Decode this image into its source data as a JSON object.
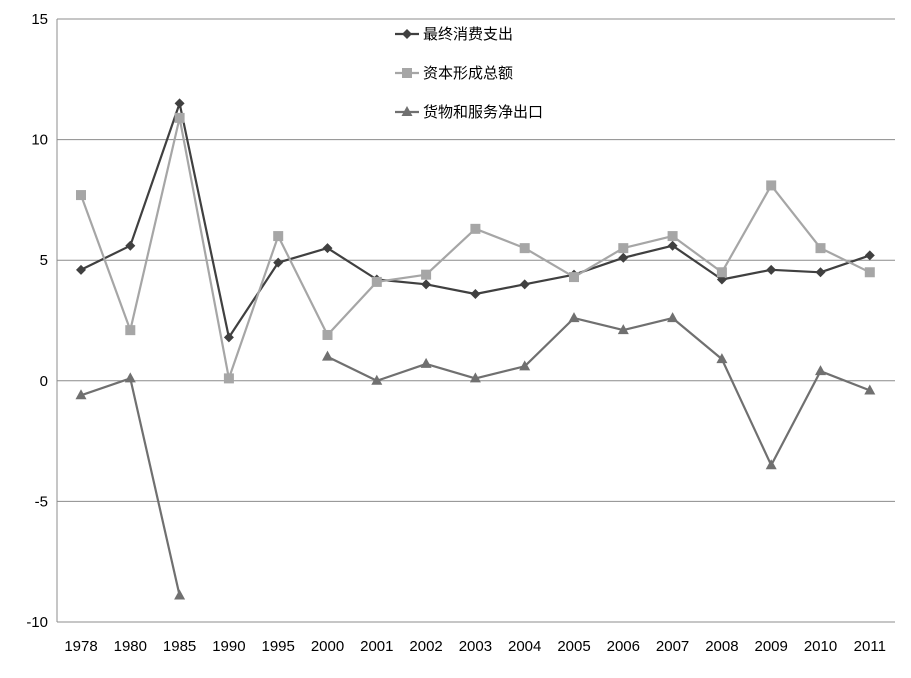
{
  "chart_data": {
    "type": "line",
    "title": "",
    "xlabel": "",
    "ylabel": "",
    "categories": [
      "1978",
      "1980",
      "1985",
      "1990",
      "1995",
      "2000",
      "2001",
      "2002",
      "2003",
      "2004",
      "2005",
      "2006",
      "2007",
      "2008",
      "2009",
      "2010",
      "2011"
    ],
    "ylim": [
      -10,
      15
    ],
    "yticks": [
      15,
      10,
      5,
      0,
      -5,
      -10
    ],
    "grid": "horizontal",
    "legend_position": "top-center",
    "series": [
      {
        "name": "最终消费支出",
        "color": "#404040",
        "marker": "diamond",
        "values": [
          4.6,
          5.6,
          11.5,
          1.8,
          4.9,
          5.5,
          4.2,
          4.0,
          3.6,
          4.0,
          4.4,
          5.1,
          5.6,
          4.2,
          4.6,
          4.5,
          5.2
        ]
      },
      {
        "name": "资本形成总额",
        "color": "#a6a6a6",
        "marker": "square",
        "values": [
          7.7,
          2.1,
          10.9,
          0.1,
          6.0,
          1.9,
          4.1,
          4.4,
          6.3,
          5.5,
          4.3,
          5.5,
          6.0,
          4.5,
          8.1,
          5.5,
          4.5
        ]
      },
      {
        "name": "货物和服务净出口",
        "color": "#707070",
        "marker": "triangle",
        "values": [
          -0.6,
          0.1,
          -8.9,
          null,
          null,
          1.0,
          0.0,
          0.7,
          0.1,
          0.6,
          2.6,
          2.1,
          2.6,
          0.9,
          -3.5,
          0.4,
          -0.4
        ]
      }
    ]
  }
}
